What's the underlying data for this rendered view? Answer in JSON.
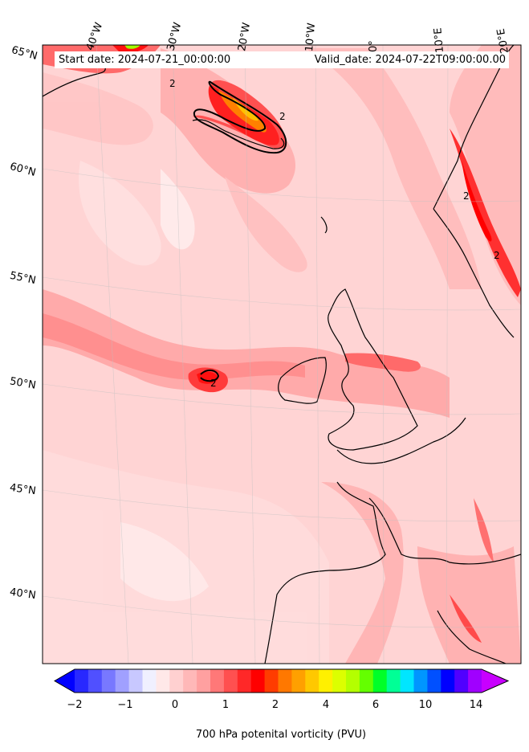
{
  "header": {
    "start_date": "Start date: 2024-07-21_00:00:00",
    "valid_date": "Valid_date: 2024-07-22T09:00:00.00"
  },
  "map": {
    "projection": "lambert-conformal",
    "land_outline_color": "#000000",
    "contour_label": "2",
    "longitude_labels": [
      "40°W",
      "30°W",
      "20°W",
      "10°W",
      "0°",
      "10°E",
      "20°E"
    ],
    "latitude_labels": [
      "65°N",
      "60°N",
      "55°N",
      "50°N",
      "45°N",
      "40°N"
    ]
  },
  "colorbar": {
    "title": "700 hPa potenital vorticity (PVU)",
    "ticks": [
      "−2",
      "−1",
      "0",
      "1",
      "2",
      "4",
      "6",
      "10",
      "14"
    ],
    "colors": [
      "#0000ff",
      "#2828ff",
      "#5050ff",
      "#7878ff",
      "#a0a0ff",
      "#c8c8ff",
      "#f0f0ff",
      "#ffe8e8",
      "#ffd0d0",
      "#ffb8b8",
      "#ffa0a0",
      "#ff7878",
      "#ff5050",
      "#ff2828",
      "#ff0000",
      "#ff3c00",
      "#ff7800",
      "#ffa000",
      "#ffc800",
      "#fff000",
      "#dcff00",
      "#b4ff00",
      "#64ff00",
      "#00ff28",
      "#00ff96",
      "#00e6ff",
      "#0096ff",
      "#0050ff",
      "#0000ff",
      "#5000ff",
      "#a000ff",
      "#c800ff"
    ]
  }
}
